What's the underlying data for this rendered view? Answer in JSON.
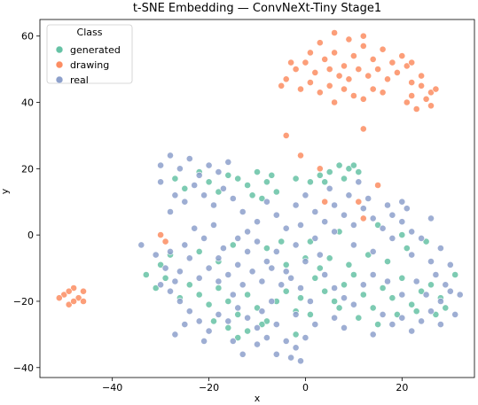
{
  "chart_data": {
    "type": "scatter",
    "title": "t-SNE Embedding — ConvNeXt-Tiny Stage1",
    "xlabel": "x",
    "ylabel": "y",
    "xlim": [
      -55,
      35
    ],
    "ylim": [
      -43,
      65
    ],
    "xticks": [
      -40,
      -20,
      0,
      20
    ],
    "yticks": [
      -40,
      -20,
      0,
      20,
      40,
      60
    ],
    "grid": false,
    "legend": {
      "title": "Class",
      "placement": "top-left"
    },
    "series": [
      {
        "name": "generated",
        "color": "#66c2a5",
        "points": [
          [
            -27,
            17
          ],
          [
            -25,
            14
          ],
          [
            -22,
            19
          ],
          [
            -20,
            16
          ],
          [
            -18,
            13
          ],
          [
            -16,
            18
          ],
          [
            -14,
            17
          ],
          [
            -12,
            15
          ],
          [
            -10,
            19
          ],
          [
            -8,
            16
          ],
          [
            -6,
            13
          ],
          [
            -11,
            12
          ],
          [
            -9,
            11
          ],
          [
            -7,
            18
          ],
          [
            -2,
            17
          ],
          [
            1,
            16
          ],
          [
            3,
            18
          ],
          [
            5,
            19
          ],
          [
            7,
            21
          ],
          [
            9,
            20
          ],
          [
            11,
            19
          ],
          [
            4,
            16
          ],
          [
            8,
            17
          ],
          [
            10,
            21
          ],
          [
            -24,
            -15
          ],
          [
            -22,
            -18
          ],
          [
            -20,
            -21
          ],
          [
            -26,
            -19
          ],
          [
            -18,
            -16
          ],
          [
            -16,
            -20
          ],
          [
            -14,
            -24
          ],
          [
            -12,
            -18
          ],
          [
            -10,
            -22
          ],
          [
            -8,
            -26
          ],
          [
            -6,
            -20
          ],
          [
            -4,
            -17
          ],
          [
            -2,
            -23
          ],
          [
            -16,
            -28
          ],
          [
            -14,
            -31
          ],
          [
            -12,
            -29
          ],
          [
            -9,
            -27
          ],
          [
            -19,
            -26
          ],
          [
            2,
            -13
          ],
          [
            4,
            -17
          ],
          [
            6,
            -20
          ],
          [
            8,
            -15
          ],
          [
            10,
            -12
          ],
          [
            12,
            -18
          ],
          [
            14,
            -22
          ],
          [
            16,
            -16
          ],
          [
            18,
            -19
          ],
          [
            20,
            -13
          ],
          [
            22,
            -21
          ],
          [
            24,
            -17
          ],
          [
            26,
            -15
          ],
          [
            28,
            -19
          ],
          [
            5,
            -7
          ],
          [
            9,
            -9
          ],
          [
            13,
            -6
          ],
          [
            17,
            -8
          ],
          [
            21,
            -4
          ],
          [
            25,
            -2
          ],
          [
            11,
            -25
          ],
          [
            15,
            -27
          ],
          [
            19,
            -24
          ],
          [
            23,
            -23
          ],
          [
            27,
            -24
          ],
          [
            3,
            -10
          ],
          [
            7,
            -22
          ],
          [
            1,
            -24
          ],
          [
            -1,
            -19
          ],
          [
            -30,
            -9
          ],
          [
            -28,
            -6
          ],
          [
            -29,
            -13
          ],
          [
            -33,
            -12
          ],
          [
            -31,
            -16
          ],
          [
            -2,
            -30
          ],
          [
            -5,
            -2
          ],
          [
            1,
            -2
          ],
          [
            7,
            1
          ],
          [
            15,
            3
          ],
          [
            20,
            0
          ],
          [
            29,
            -22
          ],
          [
            31,
            -12
          ],
          [
            -22,
            -5
          ],
          [
            -18,
            -8
          ],
          [
            -15,
            -3
          ],
          [
            -8,
            -4
          ],
          [
            -4,
            -9
          ],
          [
            0,
            -7
          ]
        ]
      },
      {
        "name": "drawing",
        "color": "#fc8d62",
        "points": [
          [
            -4,
            47
          ],
          [
            -2,
            50
          ],
          [
            0,
            52
          ],
          [
            2,
            49
          ],
          [
            4,
            53
          ],
          [
            6,
            55
          ],
          [
            8,
            51
          ],
          [
            10,
            54
          ],
          [
            12,
            57
          ],
          [
            14,
            53
          ],
          [
            16,
            56
          ],
          [
            18,
            52
          ],
          [
            20,
            54
          ],
          [
            -1,
            44
          ],
          [
            1,
            46
          ],
          [
            3,
            43
          ],
          [
            5,
            45
          ],
          [
            7,
            48
          ],
          [
            9,
            47
          ],
          [
            11,
            50
          ],
          [
            13,
            48
          ],
          [
            15,
            50
          ],
          [
            17,
            47
          ],
          [
            19,
            49
          ],
          [
            21,
            51
          ],
          [
            3,
            58
          ],
          [
            6,
            61
          ],
          [
            9,
            59
          ],
          [
            12,
            60
          ],
          [
            -3,
            52
          ],
          [
            22,
            52
          ],
          [
            14,
            44
          ],
          [
            5,
            50
          ],
          [
            8,
            44
          ],
          [
            1,
            55
          ],
          [
            -5,
            45
          ],
          [
            10,
            42
          ],
          [
            16,
            43
          ],
          [
            6,
            40
          ],
          [
            22,
            42
          ],
          [
            24,
            45
          ],
          [
            26,
            43
          ],
          [
            21,
            40
          ],
          [
            23,
            38
          ],
          [
            25,
            41
          ],
          [
            27,
            44
          ],
          [
            24,
            48
          ],
          [
            22,
            46
          ],
          [
            26,
            39
          ],
          [
            -50,
            -18
          ],
          [
            -49,
            -21
          ],
          [
            -48,
            -16
          ],
          [
            -47,
            -19
          ],
          [
            -46,
            -17
          ],
          [
            -48,
            -20
          ],
          [
            -49,
            -17
          ],
          [
            -46,
            -20
          ],
          [
            -51,
            -19
          ],
          [
            -30,
            0
          ],
          [
            -29,
            -2
          ],
          [
            -4,
            30
          ],
          [
            12,
            32
          ],
          [
            11,
            10
          ],
          [
            15,
            15
          ],
          [
            3,
            20
          ],
          [
            -1,
            24
          ],
          [
            12,
            5
          ],
          [
            4,
            10
          ],
          [
            12,
            41
          ]
        ]
      },
      {
        "name": "real",
        "color": "#8da0cb",
        "points": [
          [
            -30,
            21
          ],
          [
            -28,
            24
          ],
          [
            -26,
            20
          ],
          [
            -24,
            23
          ],
          [
            -22,
            18
          ],
          [
            -20,
            21
          ],
          [
            -18,
            19
          ],
          [
            -16,
            22
          ],
          [
            -27,
            12
          ],
          [
            -25,
            10
          ],
          [
            -23,
            15
          ],
          [
            -21,
            12
          ],
          [
            -19,
            9
          ],
          [
            -17,
            14
          ],
          [
            -15,
            11
          ],
          [
            -13,
            7
          ],
          [
            -28,
            7
          ],
          [
            -30,
            16
          ],
          [
            -12,
            -5
          ],
          [
            -10,
            -2
          ],
          [
            -8,
            -8
          ],
          [
            -6,
            -5
          ],
          [
            -4,
            -11
          ],
          [
            -2,
            -3
          ],
          [
            0,
            -8
          ],
          [
            2,
            -1
          ],
          [
            -14,
            -9
          ],
          [
            -16,
            -12
          ],
          [
            -18,
            -7
          ],
          [
            -20,
            -10
          ],
          [
            -22,
            -13
          ],
          [
            -24,
            -7
          ],
          [
            -26,
            -11
          ],
          [
            -28,
            -5
          ],
          [
            -25,
            -3
          ],
          [
            -21,
            -1
          ],
          [
            -17,
            -4
          ],
          [
            -22,
            -26
          ],
          [
            -20,
            -29
          ],
          [
            -18,
            -24
          ],
          [
            -16,
            -26
          ],
          [
            -14,
            -22
          ],
          [
            -12,
            -25
          ],
          [
            -10,
            -28
          ],
          [
            -8,
            -31
          ],
          [
            -6,
            -27
          ],
          [
            -4,
            -32
          ],
          [
            -2,
            -34
          ],
          [
            0,
            -31
          ],
          [
            -6,
            -36
          ],
          [
            -3,
            -37
          ],
          [
            -10,
            -33
          ],
          [
            -24,
            -23
          ],
          [
            -26,
            -20
          ],
          [
            -28,
            -17
          ],
          [
            -30,
            -15
          ],
          [
            -27,
            -30
          ],
          [
            -18,
            -14
          ],
          [
            -15,
            -18
          ],
          [
            -13,
            -15
          ],
          [
            -11,
            -11
          ],
          [
            -9,
            -14
          ],
          [
            -7,
            -10
          ],
          [
            -5,
            -15
          ],
          [
            -3,
            -13
          ],
          [
            -1,
            -16
          ],
          [
            2,
            7
          ],
          [
            4,
            4
          ],
          [
            6,
            9
          ],
          [
            8,
            6
          ],
          [
            10,
            3
          ],
          [
            12,
            8
          ],
          [
            14,
            5
          ],
          [
            16,
            2
          ],
          [
            18,
            6
          ],
          [
            20,
            4
          ],
          [
            22,
            1
          ],
          [
            24,
            -1
          ],
          [
            5,
            14
          ],
          [
            9,
            12
          ],
          [
            13,
            11
          ],
          [
            17,
            9
          ],
          [
            6,
            1
          ],
          [
            10,
            -3
          ],
          [
            14,
            -5
          ],
          [
            18,
            -1
          ],
          [
            22,
            -6
          ],
          [
            26,
            -8
          ],
          [
            28,
            -4
          ],
          [
            30,
            -9
          ],
          [
            4,
            -12
          ],
          [
            6,
            -16
          ],
          [
            8,
            -19
          ],
          [
            10,
            -21
          ],
          [
            12,
            -15
          ],
          [
            14,
            -12
          ],
          [
            16,
            -24
          ],
          [
            18,
            -27
          ],
          [
            20,
            -25
          ],
          [
            22,
            -29
          ],
          [
            24,
            -26
          ],
          [
            26,
            -23
          ],
          [
            28,
            -20
          ],
          [
            30,
            -17
          ],
          [
            31,
            -24
          ],
          [
            20,
            -18
          ],
          [
            23,
            -14
          ],
          [
            27,
            -12
          ],
          [
            25,
            -18
          ],
          [
            17,
            -14
          ],
          [
            -6,
            6
          ],
          [
            -8,
            10
          ],
          [
            -10,
            4
          ],
          [
            -4,
            2
          ],
          [
            -2,
            9
          ],
          [
            0,
            12
          ],
          [
            -12,
            1
          ],
          [
            -14,
            -1
          ],
          [
            -2,
            -24
          ],
          [
            2,
            -27
          ],
          [
            -7,
            -20
          ],
          [
            -9,
            -23
          ],
          [
            6,
            -25
          ],
          [
            1,
            -20
          ],
          [
            3,
            -6
          ],
          [
            -1,
            3
          ],
          [
            -34,
            -3
          ],
          [
            -31,
            -6
          ],
          [
            -29,
            -10
          ],
          [
            -27,
            -14
          ],
          [
            -23,
            2
          ],
          [
            -19,
            3
          ],
          [
            -25,
            -27
          ],
          [
            -21,
            -32
          ],
          [
            -15,
            -32
          ],
          [
            -13,
            -36
          ],
          [
            -1,
            -38
          ],
          [
            8,
            -28
          ],
          [
            14,
            -30
          ],
          [
            28,
            -27
          ],
          [
            32,
            -18
          ],
          [
            29,
            -15
          ],
          [
            20,
            10
          ],
          [
            26,
            5
          ],
          [
            11,
            16
          ],
          [
            21,
            8
          ]
        ]
      }
    ]
  }
}
